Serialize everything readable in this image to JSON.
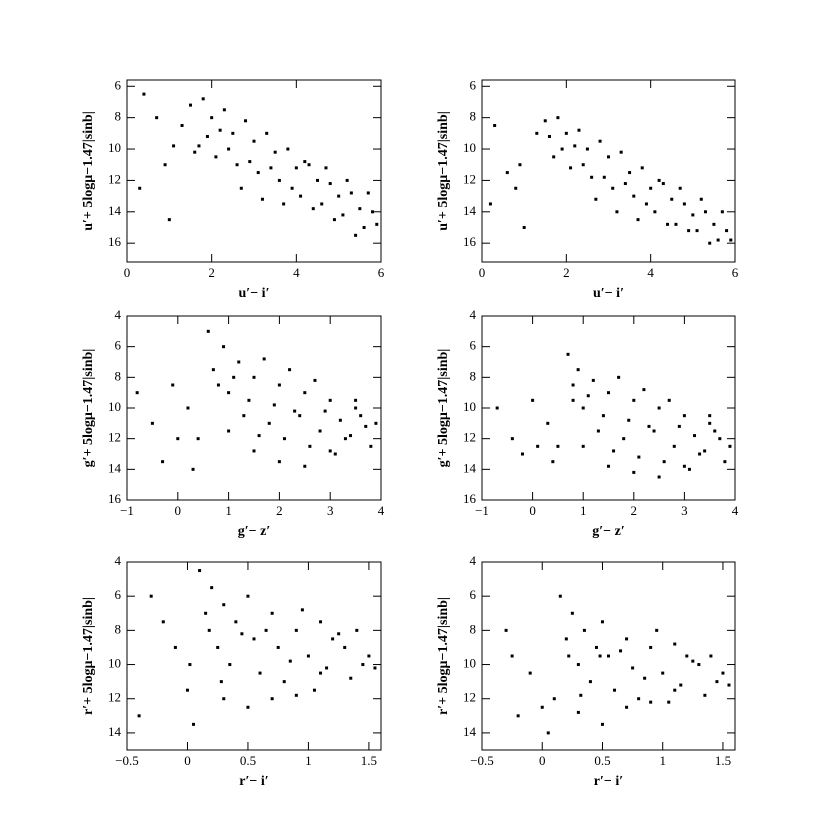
{
  "chart_data": [
    {
      "type": "scatter",
      "x_label": "u′− i′",
      "y_label": "u′+ 5logμ−1.47|sinb|",
      "color": "#000000",
      "xlim": [
        0,
        6
      ],
      "ylim": [
        17.2,
        5.6
      ],
      "xticks": [
        0,
        2,
        4,
        6
      ],
      "yticks": [
        6,
        8,
        10,
        12,
        14,
        16
      ],
      "x": [
        1.3,
        1.5,
        1.7,
        1.8,
        2.0,
        2.1,
        2.3,
        2.5,
        2.6,
        2.8,
        3.0,
        3.1,
        3.3,
        3.5,
        3.6,
        3.8,
        4.0,
        4.1,
        4.3,
        4.5,
        4.6,
        4.8,
        5.0,
        5.1,
        5.3,
        5.5,
        5.6,
        5.8,
        5.9,
        1.9,
        2.4,
        2.9,
        3.4,
        3.9,
        4.4,
        4.9,
        5.4,
        5.7,
        1.6,
        2.2,
        2.7,
        3.2,
        3.7,
        4.2,
        4.7,
        5.2,
        0.4,
        0.7,
        0.9,
        0.3,
        1.0,
        1.1
      ],
      "y": [
        8.5,
        7.2,
        9.8,
        6.8,
        8.0,
        10.5,
        7.5,
        9.0,
        11.0,
        8.2,
        9.5,
        11.5,
        9.0,
        10.2,
        12.0,
        10.0,
        11.2,
        13.0,
        11.0,
        12.0,
        13.5,
        12.2,
        13.0,
        14.2,
        12.8,
        13.8,
        15.0,
        14.0,
        14.8,
        9.2,
        10.0,
        10.8,
        11.2,
        12.5,
        13.8,
        14.5,
        15.5,
        12.8,
        10.2,
        8.8,
        12.5,
        13.2,
        13.5,
        10.8,
        11.2,
        12.0,
        6.5,
        8.0,
        11.0,
        12.5,
        14.5,
        9.8
      ]
    },
    {
      "type": "scatter",
      "x_label": "u′− i′",
      "y_label": "u′+ 5logμ−1.47|sinb|",
      "color": "#000000",
      "xlim": [
        0,
        6
      ],
      "ylim": [
        17.2,
        5.6
      ],
      "xticks": [
        0,
        2,
        4,
        6
      ],
      "yticks": [
        6,
        8,
        10,
        12,
        14,
        16
      ],
      "x": [
        1.3,
        1.5,
        1.7,
        1.8,
        2.0,
        2.1,
        2.3,
        2.5,
        2.6,
        2.8,
        3.0,
        3.1,
        3.3,
        3.5,
        3.6,
        3.8,
        4.0,
        4.1,
        4.3,
        4.5,
        4.6,
        4.8,
        5.0,
        5.1,
        5.3,
        5.5,
        5.6,
        5.8,
        5.9,
        1.9,
        2.4,
        2.9,
        3.4,
        3.9,
        4.4,
        4.9,
        5.4,
        5.7,
        1.6,
        2.2,
        2.7,
        3.2,
        3.7,
        4.2,
        4.7,
        5.2,
        0.3,
        0.6,
        0.8,
        0.2,
        1.0,
        0.9
      ],
      "y": [
        9.0,
        8.2,
        10.5,
        8.0,
        9.0,
        11.2,
        8.8,
        10.0,
        11.8,
        9.5,
        10.5,
        12.5,
        10.2,
        11.5,
        13.0,
        11.2,
        12.5,
        14.0,
        12.2,
        13.2,
        14.8,
        13.5,
        14.2,
        15.2,
        14.0,
        14.8,
        15.8,
        15.2,
        15.8,
        10.0,
        11.0,
        11.8,
        12.2,
        13.5,
        14.8,
        15.2,
        16.0,
        14.0,
        9.2,
        9.8,
        13.2,
        14.0,
        14.5,
        12.0,
        12.5,
        13.2,
        8.5,
        11.5,
        12.5,
        13.5,
        15.0,
        11.0
      ]
    },
    {
      "type": "scatter",
      "x_label": "g′− z′",
      "y_label": "g′+ 5logμ−1.47|sinb|",
      "color": "#000000",
      "xlim": [
        -1,
        4
      ],
      "ylim": [
        16,
        4
      ],
      "xticks": [
        {
          "value": -1,
          "label": "−1"
        },
        0,
        1,
        2,
        3,
        4
      ],
      "yticks": [
        4,
        6,
        8,
        10,
        12,
        14,
        16
      ],
      "x": [
        0.6,
        0.7,
        0.9,
        1.0,
        1.2,
        1.3,
        1.5,
        1.7,
        1.8,
        2.0,
        2.2,
        2.3,
        2.5,
        2.7,
        2.8,
        3.0,
        3.2,
        3.3,
        3.5,
        3.7,
        3.8,
        3.9,
        0.8,
        1.1,
        1.4,
        1.6,
        1.9,
        2.1,
        2.4,
        2.6,
        2.9,
        3.1,
        3.4,
        3.6,
        1.0,
        1.5,
        2.0,
        2.5,
        3.0,
        3.5,
        -0.8,
        -0.5,
        -0.3,
        0.0,
        0.2,
        0.3,
        -0.1,
        0.4
      ],
      "y": [
        5.0,
        7.5,
        6.0,
        9.0,
        7.0,
        10.5,
        8.0,
        6.8,
        11.0,
        8.5,
        7.5,
        10.2,
        9.0,
        8.2,
        11.5,
        9.5,
        10.8,
        12.0,
        10.0,
        11.2,
        12.5,
        11.0,
        8.5,
        8.0,
        9.5,
        11.8,
        9.8,
        12.0,
        10.5,
        12.5,
        10.2,
        13.0,
        11.8,
        10.5,
        11.5,
        12.8,
        13.5,
        13.8,
        12.8,
        9.5,
        9.0,
        11.0,
        13.5,
        12.0,
        10.0,
        14.0,
        8.5,
        12.0
      ]
    },
    {
      "type": "scatter",
      "x_label": "g′− z′",
      "y_label": "g′+ 5logμ−1.47|sinb|",
      "color": "#000000",
      "xlim": [
        -1,
        4
      ],
      "ylim": [
        16,
        4
      ],
      "xticks": [
        {
          "value": -1,
          "label": "−1"
        },
        0,
        1,
        2,
        3,
        4
      ],
      "yticks": [
        4,
        6,
        8,
        10,
        12,
        14,
        16
      ],
      "x": [
        0.7,
        0.8,
        0.9,
        1.0,
        1.2,
        1.3,
        1.5,
        1.7,
        1.8,
        2.0,
        2.2,
        2.3,
        2.5,
        2.7,
        2.8,
        3.0,
        3.2,
        3.3,
        3.5,
        3.7,
        3.8,
        3.9,
        0.8,
        1.1,
        1.4,
        1.6,
        1.9,
        2.1,
        2.4,
        2.6,
        2.9,
        3.1,
        3.4,
        3.6,
        1.0,
        1.5,
        2.0,
        2.5,
        3.0,
        3.5,
        -0.7,
        -0.4,
        -0.2,
        0.1,
        0.3,
        0.4,
        0.0,
        0.5
      ],
      "y": [
        6.5,
        8.5,
        7.5,
        10.0,
        8.2,
        11.5,
        9.0,
        8.0,
        12.0,
        9.5,
        8.8,
        11.2,
        10.0,
        9.5,
        12.5,
        10.5,
        11.8,
        13.0,
        11.0,
        12.0,
        13.5,
        12.5,
        9.5,
        9.2,
        10.5,
        12.8,
        10.8,
        13.2,
        11.5,
        13.5,
        11.2,
        14.0,
        12.8,
        11.5,
        12.5,
        13.8,
        14.2,
        14.5,
        13.8,
        10.5,
        10.0,
        12.0,
        13.0,
        12.5,
        11.0,
        13.5,
        9.5,
        12.5
      ]
    },
    {
      "type": "scatter",
      "x_label": "r′− i′",
      "y_label": "r′+ 5logμ−1.47|sinb|",
      "color": "#000000",
      "xlim": [
        -0.5,
        1.6
      ],
      "ylim": [
        15,
        4
      ],
      "xticks": [
        {
          "value": -0.5,
          "label": "−0.5"
        },
        0,
        0.5,
        1,
        1.5
      ],
      "yticks": [
        4,
        6,
        8,
        10,
        12,
        14
      ],
      "x": [
        0.1,
        0.15,
        0.2,
        0.25,
        0.3,
        0.35,
        0.4,
        0.5,
        0.55,
        0.6,
        0.7,
        0.75,
        0.8,
        0.9,
        0.95,
        1.0,
        1.1,
        1.15,
        1.2,
        1.3,
        1.35,
        1.4,
        1.5,
        1.55,
        0.18,
        0.28,
        0.45,
        0.65,
        0.85,
        1.05,
        1.25,
        1.45,
        0.3,
        0.5,
        0.7,
        0.9,
        1.1,
        -0.3,
        -0.1,
        0.0,
        -0.4,
        0.05,
        -0.2,
        0.02
      ],
      "y": [
        4.5,
        7.0,
        5.5,
        9.0,
        6.5,
        10.0,
        7.5,
        6.0,
        8.5,
        10.5,
        7.0,
        9.0,
        11.0,
        8.0,
        6.8,
        9.5,
        7.5,
        10.2,
        8.5,
        9.0,
        10.8,
        8.0,
        9.5,
        10.2,
        8.0,
        11.0,
        8.2,
        8.0,
        9.8,
        11.5,
        8.2,
        10.0,
        12.0,
        12.5,
        12.0,
        11.8,
        10.5,
        6.0,
        9.0,
        11.5,
        13.0,
        13.5,
        7.5,
        10.0
      ]
    },
    {
      "type": "scatter",
      "x_label": "r′− i′",
      "y_label": "r′+ 5logμ−1.47|sinb|",
      "color": "#000000",
      "xlim": [
        -0.5,
        1.6
      ],
      "ylim": [
        15,
        4
      ],
      "xticks": [
        {
          "value": -0.5,
          "label": "−0.5"
        },
        0,
        0.5,
        1,
        1.5
      ],
      "yticks": [
        4,
        6,
        8,
        10,
        12,
        14
      ],
      "x": [
        0.15,
        0.2,
        0.25,
        0.3,
        0.35,
        0.4,
        0.45,
        0.5,
        0.55,
        0.6,
        0.7,
        0.75,
        0.8,
        0.9,
        0.95,
        1.0,
        1.1,
        1.15,
        1.2,
        1.3,
        1.35,
        1.4,
        1.5,
        1.55,
        0.22,
        0.32,
        0.48,
        0.65,
        0.85,
        1.05,
        1.25,
        1.45,
        0.3,
        0.5,
        0.7,
        0.9,
        1.1,
        -0.3,
        -0.1,
        0.0,
        -0.2,
        0.05,
        -0.25,
        0.1
      ],
      "y": [
        6.0,
        8.5,
        7.0,
        10.0,
        8.0,
        11.0,
        9.0,
        7.5,
        9.5,
        11.5,
        8.5,
        10.2,
        12.0,
        9.0,
        8.0,
        10.5,
        8.8,
        11.2,
        9.5,
        10.0,
        11.8,
        9.5,
        10.5,
        11.2,
        9.5,
        11.8,
        9.5,
        9.2,
        10.8,
        12.2,
        9.8,
        11.0,
        12.8,
        13.5,
        12.5,
        12.2,
        11.5,
        8.0,
        10.5,
        12.5,
        13.0,
        14.0,
        9.5,
        12.0
      ]
    }
  ]
}
